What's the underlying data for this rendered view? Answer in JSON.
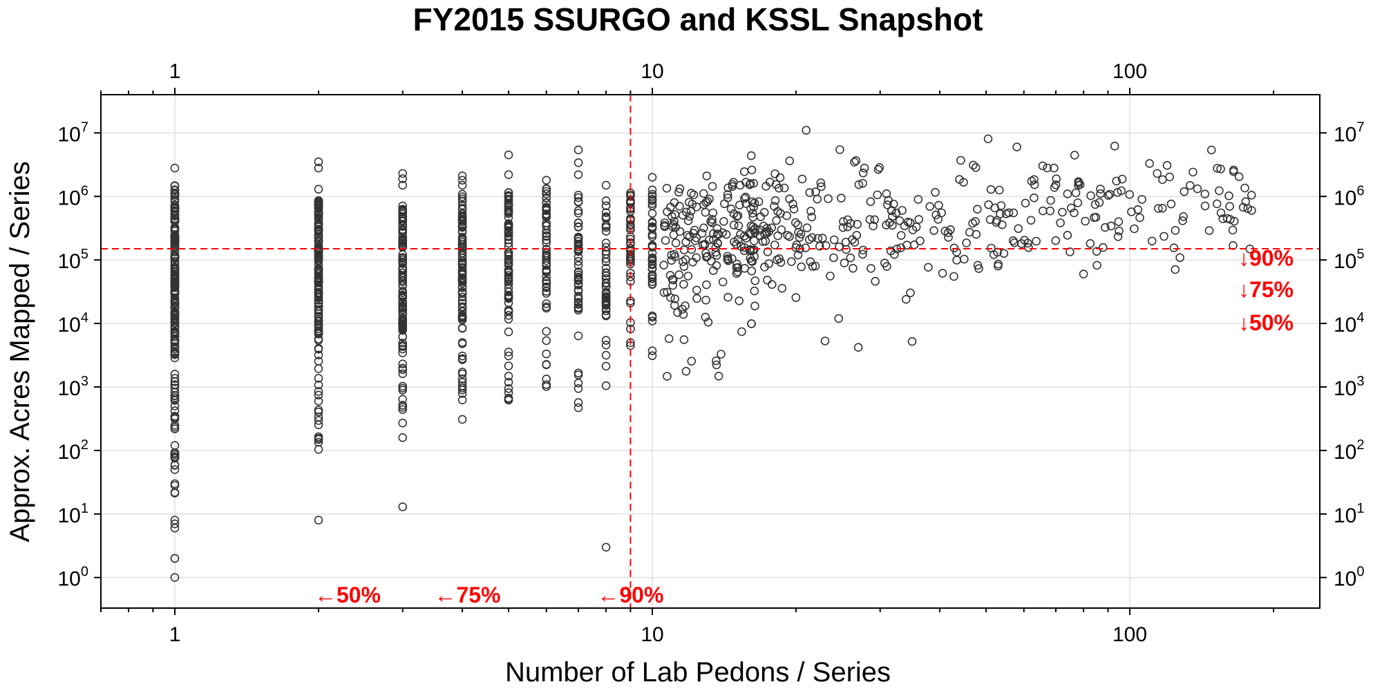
{
  "chart_data": {
    "type": "scatter",
    "title": "FY2015 SSURGO and KSSL Snapshot",
    "xlabel": "Number of Lab Pedons / Series",
    "ylabel": "Approx. Acres Mapped / Series",
    "x_scale": "log10",
    "y_scale": "log10",
    "xlim": [
      0.7,
      250
    ],
    "ylim": [
      0.33,
      40000000
    ],
    "x_ticks": [
      {
        "value": 1,
        "label": "1"
      },
      {
        "value": 10,
        "label": "10"
      },
      {
        "value": 100,
        "label": "100"
      }
    ],
    "y_ticks": [
      {
        "value": 1,
        "label": "10",
        "exp": "0"
      },
      {
        "value": 10,
        "label": "10",
        "exp": "1"
      },
      {
        "value": 100,
        "label": "10",
        "exp": "2"
      },
      {
        "value": 1000,
        "label": "10",
        "exp": "3"
      },
      {
        "value": 10000,
        "label": "10",
        "exp": "4"
      },
      {
        "value": 100000,
        "label": "10",
        "exp": "5"
      },
      {
        "value": 1000000,
        "label": "10",
        "exp": "6"
      },
      {
        "value": 10000000,
        "label": "10",
        "exp": "7"
      }
    ],
    "grid": true,
    "marker": "open-circle",
    "point_color": "#333333",
    "reference_color": "#ff0000",
    "reference_lines": {
      "x": 9,
      "y": 150000
    },
    "annotations": {
      "x_percentiles": [
        {
          "text": "←50%",
          "at_x": 2.3
        },
        {
          "text": "←75%",
          "at_x": 4.1
        },
        {
          "text": "←90%",
          "at_x": 9.0
        }
      ],
      "y_percentiles": [
        {
          "text": "↓90%",
          "at_y": 110000
        },
        {
          "text": "↓75%",
          "at_y": 35000
        },
        {
          "text": "↓50%",
          "at_y": 10500
        }
      ]
    },
    "columns": [
      {
        "x": 1,
        "lo": 20,
        "hi": 1500000,
        "n": 200,
        "extra": [
          2800000,
          8,
          7,
          6,
          2,
          2,
          1,
          30,
          50,
          80,
          120
        ]
      },
      {
        "x": 2,
        "lo": 100,
        "hi": 900000,
        "n": 150,
        "extra": [
          3500000,
          2800000,
          1300000,
          8
        ]
      },
      {
        "x": 3,
        "lo": 150,
        "hi": 850000,
        "n": 120,
        "extra": [
          2300000,
          1900000,
          1500000,
          13
        ]
      },
      {
        "x": 4,
        "lo": 260,
        "hi": 1100000,
        "n": 100,
        "extra": [
          2100000,
          1800000,
          1500000
        ]
      },
      {
        "x": 5,
        "lo": 400,
        "hi": 1200000,
        "n": 80,
        "extra": [
          4500000,
          2200000,
          650
        ]
      },
      {
        "x": 6,
        "lo": 1000,
        "hi": 1500000,
        "n": 65,
        "extra": [
          1800000
        ]
      },
      {
        "x": 7,
        "lo": 380,
        "hi": 1400000,
        "n": 60,
        "extra": [
          5400000,
          3400000,
          2200000
        ]
      },
      {
        "x": 8,
        "lo": 750,
        "hi": 1000000,
        "n": 50,
        "extra": [
          1500000,
          3
        ]
      },
      {
        "x": 9,
        "lo": 4000,
        "hi": 1300000,
        "n": 45,
        "extra": []
      },
      {
        "x": 10,
        "lo": 2200,
        "hi": 1300000,
        "n": 45,
        "extra": [
          2000000
        ]
      },
      {
        "x": 11,
        "lo": 1000,
        "hi": 1500000,
        "n": 38,
        "extra": []
      },
      {
        "x": 12,
        "lo": 900,
        "hi": 1400000,
        "n": 34,
        "extra": []
      },
      {
        "x": 13,
        "lo": 8000,
        "hi": 1700000,
        "n": 28,
        "extra": [
          2100000
        ]
      },
      {
        "x": 14,
        "lo": 1400,
        "hi": 1600000,
        "n": 26,
        "extra": []
      },
      {
        "x": 15,
        "lo": 5000,
        "hi": 2000000,
        "n": 24,
        "extra": []
      },
      {
        "x": 16,
        "lo": 9000,
        "hi": 3400000,
        "n": 22,
        "extra": []
      }
    ],
    "scatter_region": {
      "x_min": 16,
      "x_max": 180,
      "n": 330,
      "y_log_min": 3.6,
      "y_log_max": 7.05
    },
    "notable_points": [
      {
        "x": 21,
        "y": 11000000
      },
      {
        "x": 93,
        "y": 6200000
      },
      {
        "x": 58,
        "y": 6000000
      },
      {
        "x": 110,
        "y": 3300000
      },
      {
        "x": 155,
        "y": 2700000
      },
      {
        "x": 165,
        "y": 2600000
      },
      {
        "x": 180,
        "y": 600000
      },
      {
        "x": 80,
        "y": 60000
      },
      {
        "x": 35,
        "y": 5200
      },
      {
        "x": 27,
        "y": 4200
      },
      {
        "x": 23,
        "y": 5300
      }
    ]
  }
}
